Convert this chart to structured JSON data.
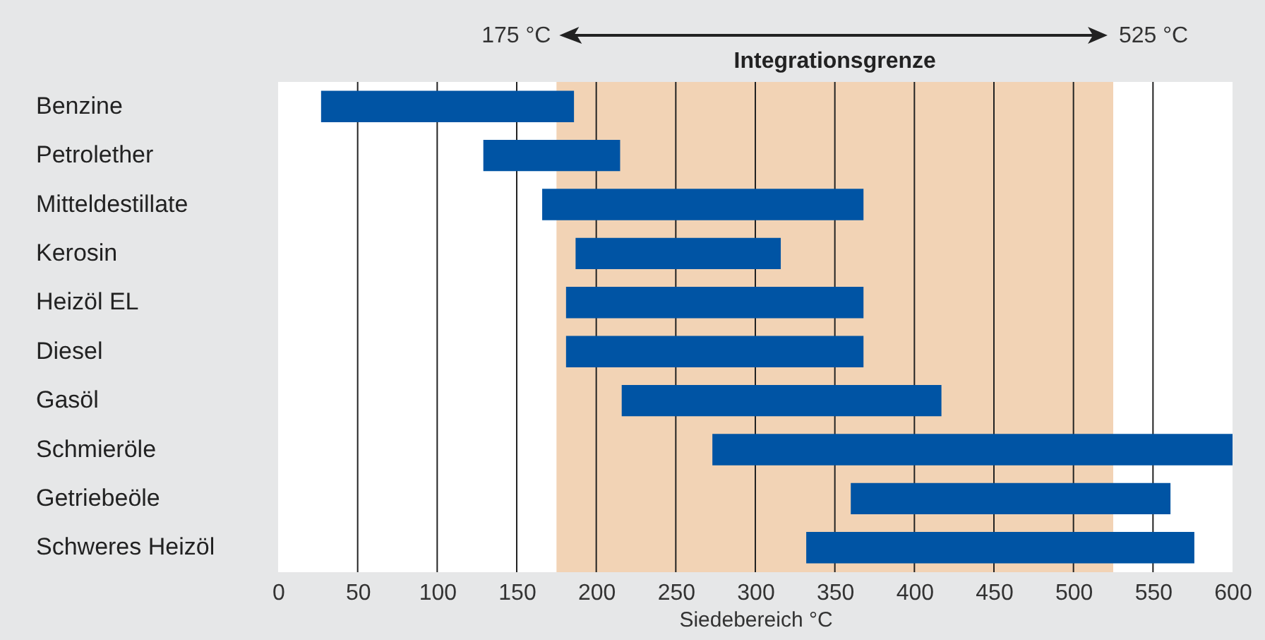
{
  "chart_data": {
    "type": "bar",
    "orientation": "horizontal",
    "categories": [
      "Benzine",
      "Petrolether",
      "Mitteldestillate",
      "Kerosin",
      "Heizöl EL",
      "Diesel",
      "Gasöl",
      "Schmieröle",
      "Getriebeöle",
      "Schweres Heizöl"
    ],
    "base": [
      27,
      129,
      166,
      187,
      181,
      181,
      216,
      273,
      360,
      332
    ],
    "values": [
      159,
      86,
      202,
      129,
      187,
      187,
      201,
      327,
      201,
      244
    ],
    "color": "#0054a4",
    "xlabel": "Siedebereich °C",
    "xlim": [
      0,
      600
    ],
    "xticks": [
      0,
      50,
      100,
      150,
      200,
      250,
      300,
      350,
      400,
      450,
      500,
      550,
      600
    ],
    "grid": "x",
    "bands": [
      {
        "axis": "x",
        "from": 175,
        "to": 525,
        "label": "Integrationsgrenze",
        "color": "#f2d3b5"
      }
    ],
    "annotations": [
      "175 °C",
      "525 °C"
    ]
  }
}
